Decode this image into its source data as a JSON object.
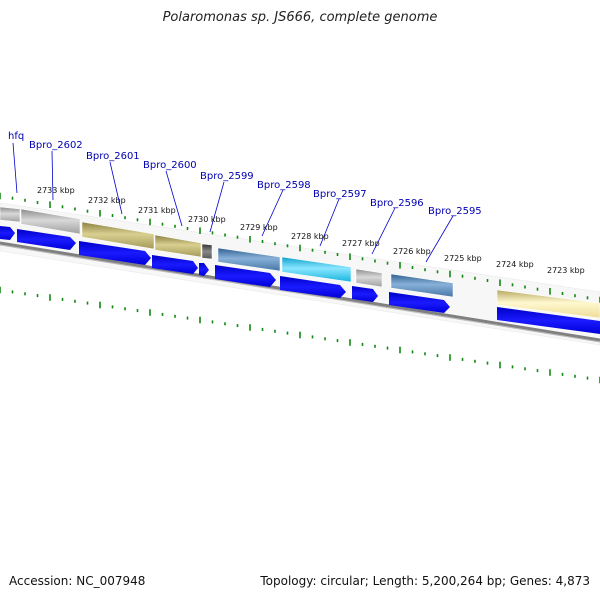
{
  "title": "Polaromonas sp. JS666, complete genome",
  "footer": {
    "accession": "Accession: NC_007948",
    "summary": "Topology: circular; Length: 5,200,264 bp; Genes: 4,873"
  },
  "kbp_labels": [
    "2733 kbp",
    "2732 kbp",
    "2731 kbp",
    "2730 kbp",
    "2729 kbp",
    "2728 kbp",
    "2727 kbp",
    "2726 kbp",
    "2725 kbp",
    "2724 kbp",
    "2723 kbp"
  ],
  "gene_labels": [
    "hfq",
    "Bpro_2602",
    "Bpro_2601",
    "Bpro_2600",
    "Bpro_2599",
    "Bpro_2598",
    "Bpro_2597",
    "Bpro_2596",
    "Bpro_2595"
  ],
  "colors": {
    "gene_arrow": "#0000ee",
    "tick": "#118811",
    "backbone": "#8a8a8a",
    "label": "#0000b0",
    "feature_gray": "#b5b5b5",
    "feature_olive": "#b0a860",
    "feature_steel": "#4f80b0",
    "feature_cyan": "#20b8e0",
    "feature_pale": "#eee0a0",
    "feature_dark": "#666666"
  }
}
